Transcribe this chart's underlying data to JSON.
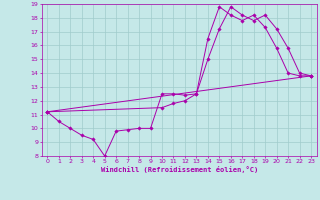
{
  "xlabel": "Windchill (Refroidissement éolien,°C)",
  "xlim": [
    -0.5,
    23.5
  ],
  "ylim": [
    8,
    19
  ],
  "xticks": [
    0,
    1,
    2,
    3,
    4,
    5,
    6,
    7,
    8,
    9,
    10,
    11,
    12,
    13,
    14,
    15,
    16,
    17,
    18,
    19,
    20,
    21,
    22,
    23
  ],
  "yticks": [
    8,
    9,
    10,
    11,
    12,
    13,
    14,
    15,
    16,
    17,
    18,
    19
  ],
  "bg_color": "#c5e8e8",
  "line_color": "#aa00aa",
  "grid_color": "#a0cccc",
  "lines": [
    {
      "x": [
        0,
        1,
        2,
        3,
        4,
        5,
        6,
        7,
        8,
        9,
        10,
        11,
        12,
        13,
        14,
        15,
        16,
        17,
        18,
        19,
        20,
        21,
        22,
        23
      ],
      "y": [
        11.2,
        10.5,
        10.0,
        9.5,
        9.2,
        8.0,
        9.8,
        9.9,
        10.0,
        10.0,
        12.5,
        12.5,
        12.4,
        12.5,
        15.0,
        17.2,
        18.8,
        18.2,
        17.8,
        18.2,
        17.2,
        15.8,
        14.0,
        13.8
      ]
    },
    {
      "x": [
        0,
        10,
        11,
        12,
        13,
        14,
        15,
        16,
        17,
        18,
        19,
        20,
        21,
        22,
        23
      ],
      "y": [
        11.2,
        11.5,
        11.8,
        12.0,
        12.5,
        16.5,
        18.8,
        18.2,
        17.8,
        18.2,
        17.3,
        15.8,
        14.0,
        13.8,
        13.8
      ]
    },
    {
      "x": [
        0,
        23
      ],
      "y": [
        11.2,
        13.8
      ]
    }
  ]
}
